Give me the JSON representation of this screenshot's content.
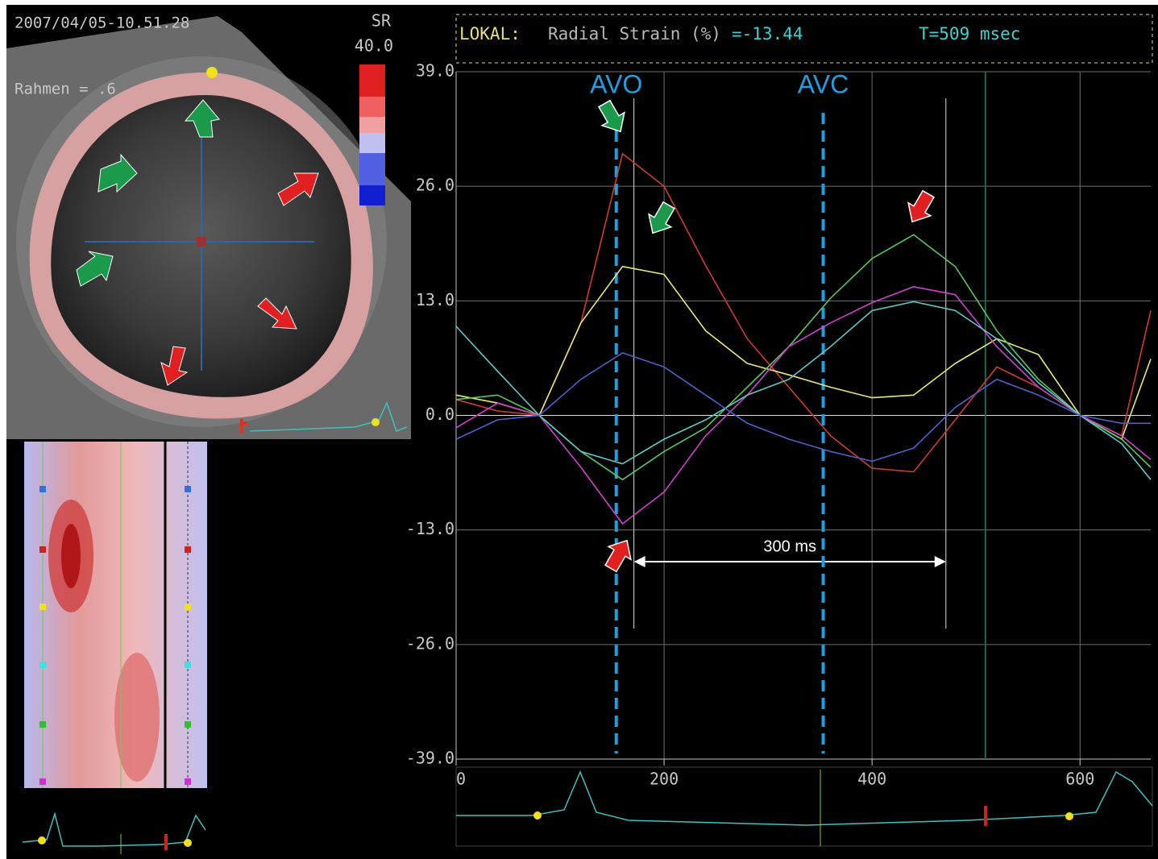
{
  "image_panel": {
    "timestamp": "2007/04/05-10.51.28",
    "frame_label": "Rahmen = .6",
    "scale_label": "SR",
    "scale_value": "40.0"
  },
  "chart_data": {
    "type": "line",
    "header_label": "LOKAL:",
    "title": "Radial Strain (%)",
    "readout": "=-13.44",
    "time_readout": "T=509 msec",
    "x": [
      0,
      40,
      80,
      120,
      160,
      200,
      240,
      280,
      320,
      360,
      400,
      440,
      480,
      520,
      560,
      600,
      640,
      668
    ],
    "series": [
      {
        "color": "#d03a30",
        "values": [
          1.8,
          0.5,
          0,
          10.5,
          29.7,
          26,
          17,
          8.7,
          3.2,
          -2.3,
          -6,
          -6.4,
          -0.5,
          5.5,
          3.2,
          0,
          -2.3,
          11.9
        ]
      },
      {
        "color": "#e8e87a",
        "values": [
          2.3,
          1.4,
          0,
          10.5,
          16.9,
          16,
          9.6,
          5.9,
          4.6,
          3.2,
          2,
          2.3,
          5.9,
          8.7,
          6.9,
          0,
          -2.7,
          6.4
        ]
      },
      {
        "color": "#58c858",
        "values": [
          1.8,
          2.3,
          0,
          -4.1,
          -7.3,
          -4.1,
          -1.4,
          3.2,
          7.8,
          13.3,
          17.8,
          20.5,
          16.9,
          9.6,
          4.1,
          0,
          -2.7,
          -5.9
        ]
      },
      {
        "color": "#d040d0",
        "values": [
          -1.4,
          1.4,
          0,
          -5.9,
          -12.3,
          -8.7,
          -2.3,
          2.3,
          7.8,
          10.5,
          12.8,
          14.6,
          13.7,
          7.8,
          3.2,
          0,
          -2.3,
          -5
        ]
      },
      {
        "color": "#60c8c8",
        "values": [
          10.1,
          5,
          0,
          -4.1,
          -5.5,
          -2.7,
          -0.5,
          2.3,
          4.1,
          7.8,
          11.9,
          12.9,
          11.9,
          8.7,
          3.7,
          0,
          -3.2,
          -7.3
        ]
      },
      {
        "color": "#5060c8",
        "values": [
          -2.7,
          -0.5,
          0,
          4.1,
          7.1,
          5.5,
          2.3,
          -0.9,
          -2.7,
          -4.1,
          -5.2,
          -3.7,
          0.9,
          4.1,
          2.3,
          0,
          -0.9,
          -0.9
        ]
      }
    ],
    "xlim": [
      0,
      668
    ],
    "xticks": [
      0,
      200,
      400,
      600
    ],
    "ylim": [
      -39,
      39
    ],
    "yticks": [
      {
        "value": 39,
        "label": "39.0"
      },
      {
        "value": 26,
        "label": "26.0"
      },
      {
        "value": 13,
        "label": "13.0"
      },
      {
        "value": 0,
        "label": "0.0"
      },
      {
        "value": -13,
        "label": "-13.0"
      },
      {
        "value": -26,
        "label": "-26.0"
      },
      {
        "value": -39,
        "label": "-39.0"
      }
    ],
    "grid": true,
    "markers": [
      {
        "label": "AVO",
        "x": 154,
        "color": "#1ea0e0"
      },
      {
        "label": "AVC",
        "x": 353,
        "color": "#1ea0e0"
      }
    ],
    "interval": {
      "label": "300 ms",
      "x": [
        171,
        471
      ]
    },
    "cursor": 509
  }
}
